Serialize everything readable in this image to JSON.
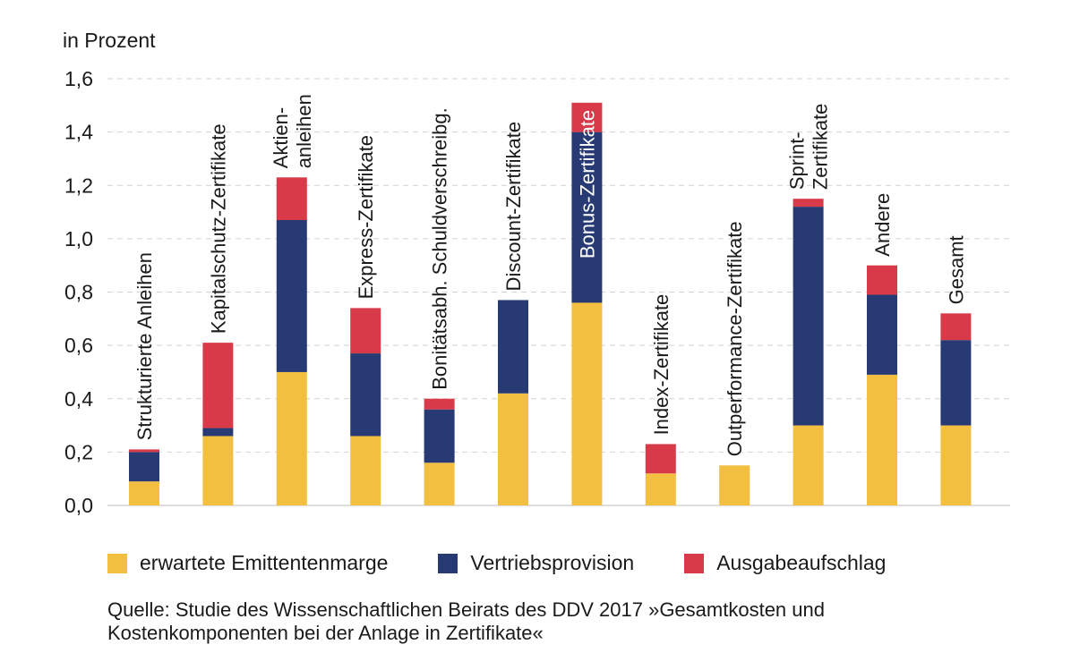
{
  "chart_data": {
    "type": "bar",
    "stacked": true,
    "ylabel": "in Prozent",
    "ylim": [
      0,
      1.6
    ],
    "yticks": [
      "0,0",
      "0,2",
      "0,4",
      "0,6",
      "0,8",
      "1,0",
      "1,2",
      "1,4",
      "1,6"
    ],
    "grid": true,
    "categories": [
      [
        "Strukturierte Anleihen"
      ],
      [
        "Kapitalschutz-Zertifikate"
      ],
      [
        "Aktien-",
        "anleihen"
      ],
      [
        "Express-Zertifikate"
      ],
      [
        "Bonitätsabh. Schuldverschreibg."
      ],
      [
        "Discount-Zertifikate"
      ],
      [
        "Bonus-Zertifikate"
      ],
      [
        "Index-Zertifikate"
      ],
      [
        "Outperformance-Zertifikate"
      ],
      [
        "Sprint-",
        "Zertifikate"
      ],
      [
        "Andere"
      ],
      [
        "Gesamt"
      ]
    ],
    "series": [
      {
        "name": "erwartete Emittentenmarge",
        "color": "#F2BF40",
        "values": [
          0.09,
          0.26,
          0.5,
          0.26,
          0.16,
          0.42,
          0.76,
          0.12,
          0.15,
          0.3,
          0.49,
          0.3
        ]
      },
      {
        "name": "Vertriebsprovision",
        "color": "#283A74",
        "values": [
          0.11,
          0.03,
          0.57,
          0.31,
          0.2,
          0.35,
          0.64,
          0.0,
          0.0,
          0.82,
          0.3,
          0.32
        ]
      },
      {
        "name": "Ausgabeaufschlag",
        "color": "#D93A4A",
        "values": [
          0.01,
          0.32,
          0.16,
          0.17,
          0.04,
          0.0,
          0.11,
          0.11,
          0.0,
          0.03,
          0.11,
          0.1
        ]
      }
    ],
    "label_inside_bar": [
      false,
      false,
      false,
      false,
      false,
      false,
      true,
      false,
      false,
      false,
      false,
      false
    ],
    "legend_position": "bottom"
  },
  "source": "Quelle: Studie des Wissenschaftlichen Beirats des DDV 2017 »Gesamtkosten und Kostenkomponenten bei der Anlage in Zertifikate«"
}
